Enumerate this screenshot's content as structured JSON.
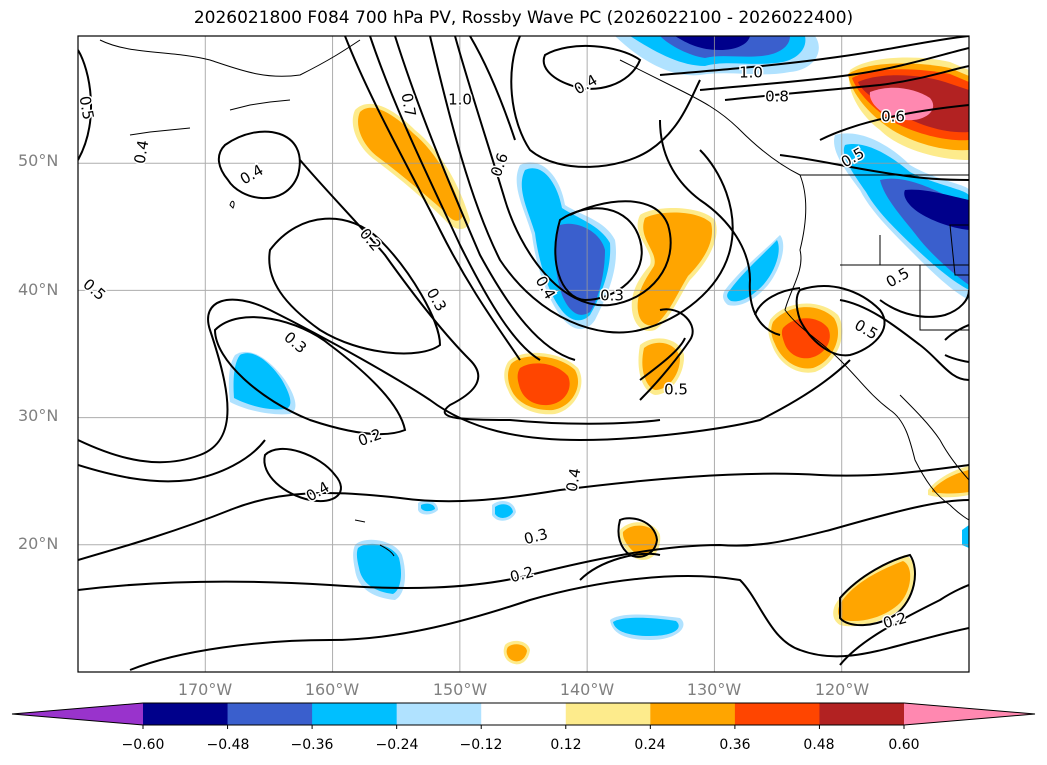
{
  "title": "2026021800 F084 700 hPa PV, Rossby Wave PC (2026022100 - 2026022400)",
  "map": {
    "projection": "plate-carree",
    "lon_range": [
      -180,
      -110
    ],
    "lat_range": [
      10,
      60
    ],
    "grid": true,
    "lat_ticks": [
      {
        "value": 20,
        "label": "20°N"
      },
      {
        "value": 30,
        "label": "30°N"
      },
      {
        "value": 40,
        "label": "40°N"
      },
      {
        "value": 50,
        "label": "50°N"
      }
    ],
    "lon_ticks": [
      {
        "value": -170,
        "label": "170°W"
      },
      {
        "value": -160,
        "label": "160°W"
      },
      {
        "value": -150,
        "label": "150°W"
      },
      {
        "value": -140,
        "label": "140°W"
      },
      {
        "value": -130,
        "label": "130°W"
      },
      {
        "value": -120,
        "label": "120°W"
      }
    ],
    "contour_labels": [
      "0.5",
      "0.4",
      "0.4",
      "1.0",
      "0.7",
      "0.6",
      "0.4",
      "1.0",
      "0.8",
      "0.6",
      "0.5",
      "0.2",
      "0.3",
      "0.4",
      "0.3",
      "0.4",
      "0.5",
      "0.5",
      "0.5",
      "0.3",
      "0.2",
      "0.4",
      "0.4",
      "0.3",
      "0.2",
      "0.2",
      "0.5"
    ]
  },
  "colorbar": {
    "ticks": [
      "−0.60",
      "−0.48",
      "−0.36",
      "−0.24",
      "−0.12",
      "0.12",
      "0.24",
      "0.36",
      "0.48",
      "0.60"
    ],
    "levels": [
      -0.6,
      -0.48,
      -0.36,
      -0.24,
      -0.12,
      0.12,
      0.24,
      0.36,
      0.48,
      0.6
    ],
    "colors": [
      "#9933cc",
      "#00008b",
      "#3a5fcd",
      "#00bfff",
      "#b0e2ff",
      "#ffffff",
      "#fdeb8c",
      "#ffa500",
      "#ff4500",
      "#b22222",
      "#ff88b0"
    ],
    "extend": "both"
  }
}
